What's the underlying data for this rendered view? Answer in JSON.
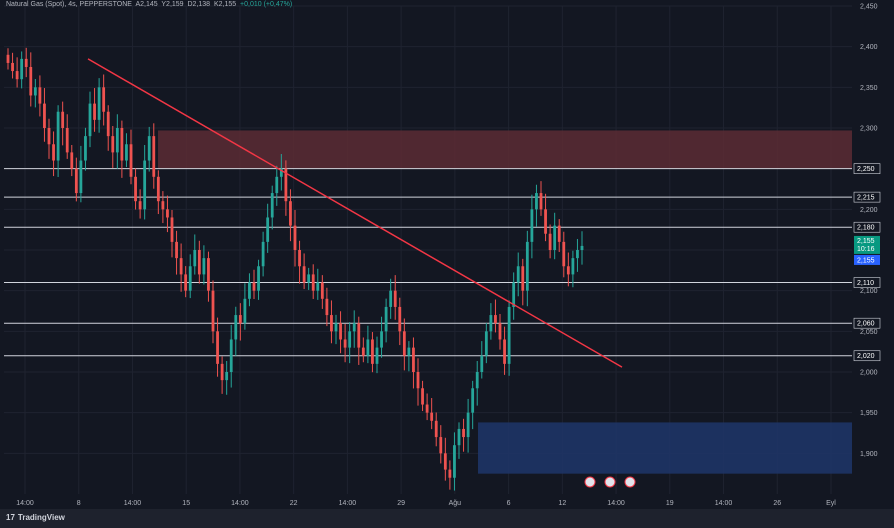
{
  "header": {
    "symbol": "Natural Gas (Spot), 4s, PEPPERSTONE",
    "open": "A2,145",
    "high": "Y2,159",
    "low": "D2,138",
    "close": "K2,155",
    "change": "+0,010 (+0,47%)"
  },
  "footer": {
    "brand": "TradingView"
  },
  "colors": {
    "background": "#131722",
    "up": "#26a69a",
    "down": "#ef5350",
    "trendline": "#f23645",
    "supply_zone": "#5c2b34",
    "demand_zone": "#1e3466",
    "level_line": "#d1d4dc",
    "current_price": "#2962ff"
  },
  "chart_data": {
    "type": "candlestick",
    "y_range": [
      1.85,
      2.45
    ],
    "y_ticks": [
      "2,450",
      "2,400",
      "2,350",
      "2,300",
      "2,250",
      "2,200",
      "2,150",
      "2,100",
      "2,050",
      "2,000",
      "1,950",
      "1,900"
    ],
    "x_ticks": [
      "14:00",
      "8",
      "14:00",
      "15",
      "14:00",
      "22",
      "14:00",
      "29",
      "Ağu",
      "6",
      "12",
      "14:00",
      "19",
      "14:00",
      "26",
      "Eyl"
    ],
    "horizontal_levels": [
      {
        "label": "2,250",
        "value": 2.25
      },
      {
        "label": "2,215",
        "value": 2.215
      },
      {
        "label": "2,180",
        "value": 2.178
      },
      {
        "label": "2,110",
        "value": 2.11
      },
      {
        "label": "2,060",
        "value": 2.06
      },
      {
        "label": "2,020",
        "value": 2.02
      }
    ],
    "current_price": {
      "label": "2,155",
      "countdown": "10:16",
      "value": 2.155
    },
    "last_price_tag": {
      "label": "2,155",
      "value": 2.155
    },
    "supply_zone": {
      "from_value": 2.297,
      "to_value": 2.25
    },
    "demand_zone": {
      "from_value": 1.938,
      "to_value": 1.875
    },
    "trendline": {
      "start_value": 2.385,
      "end_value": 2.006
    },
    "news_markers": 3,
    "closes": [
      2.38,
      2.37,
      2.36,
      2.385,
      2.375,
      2.34,
      2.35,
      2.33,
      2.3,
      2.28,
      2.26,
      2.32,
      2.3,
      2.27,
      2.25,
      2.22,
      2.26,
      2.29,
      2.33,
      2.31,
      2.35,
      2.32,
      2.29,
      2.27,
      2.3,
      2.26,
      2.28,
      2.24,
      2.21,
      2.2,
      2.26,
      2.29,
      2.24,
      2.21,
      2.2,
      2.19,
      2.16,
      2.14,
      2.12,
      2.1,
      2.13,
      2.15,
      2.12,
      2.14,
      2.1,
      2.05,
      2.01,
      1.99,
      2.0,
      2.04,
      2.07,
      2.06,
      2.09,
      2.11,
      2.1,
      2.13,
      2.16,
      2.19,
      2.22,
      2.24,
      2.25,
      2.21,
      2.18,
      2.15,
      2.13,
      2.11,
      2.12,
      2.1,
      2.11,
      2.09,
      2.07,
      2.05,
      2.06,
      2.04,
      2.03,
      2.05,
      2.06,
      2.03,
      2.02,
      2.04,
      2.01,
      2.03,
      2.05,
      2.08,
      2.1,
      2.08,
      2.05,
      2.02,
      2.03,
      2.0,
      1.98,
      1.96,
      1.95,
      1.94,
      1.92,
      1.9,
      1.88,
      1.87,
      1.91,
      1.93,
      1.92,
      1.95,
      1.98,
      2.0,
      2.02,
      2.05,
      2.07,
      2.06,
      2.04,
      2.01,
      2.08,
      2.11,
      2.13,
      2.1,
      2.16,
      2.2,
      2.22,
      2.2,
      2.17,
      2.15,
      2.18,
      2.16,
      2.13,
      2.12,
      2.14,
      2.15,
      2.155
    ]
  }
}
